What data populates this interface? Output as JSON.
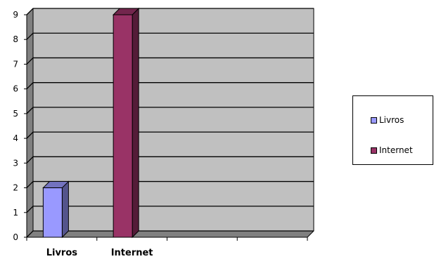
{
  "chart_data": {
    "type": "bar",
    "categories": [
      "Livros",
      "Internet"
    ],
    "series": [
      {
        "name": "Livros",
        "values": [
          2,
          null
        ],
        "color": "#9999ff"
      },
      {
        "name": "Internet",
        "values": [
          null,
          9
        ],
        "color": "#993366"
      }
    ],
    "ylim": [
      0,
      9
    ],
    "y_ticks": [
      "0",
      "1",
      "2",
      "3",
      "4",
      "5",
      "6",
      "7",
      "8",
      "9"
    ],
    "x_slots": 4,
    "title": "",
    "xlabel": "",
    "ylabel": "",
    "grid": true,
    "legend_placement": "right",
    "colors": {
      "plot_background": "#c0c0c0",
      "wall_side": "#808080",
      "floor": "#808080"
    }
  },
  "legend": {
    "items": [
      {
        "label": "Livros",
        "color": "#9999ff"
      },
      {
        "label": "Internet",
        "color": "#993366"
      }
    ]
  }
}
